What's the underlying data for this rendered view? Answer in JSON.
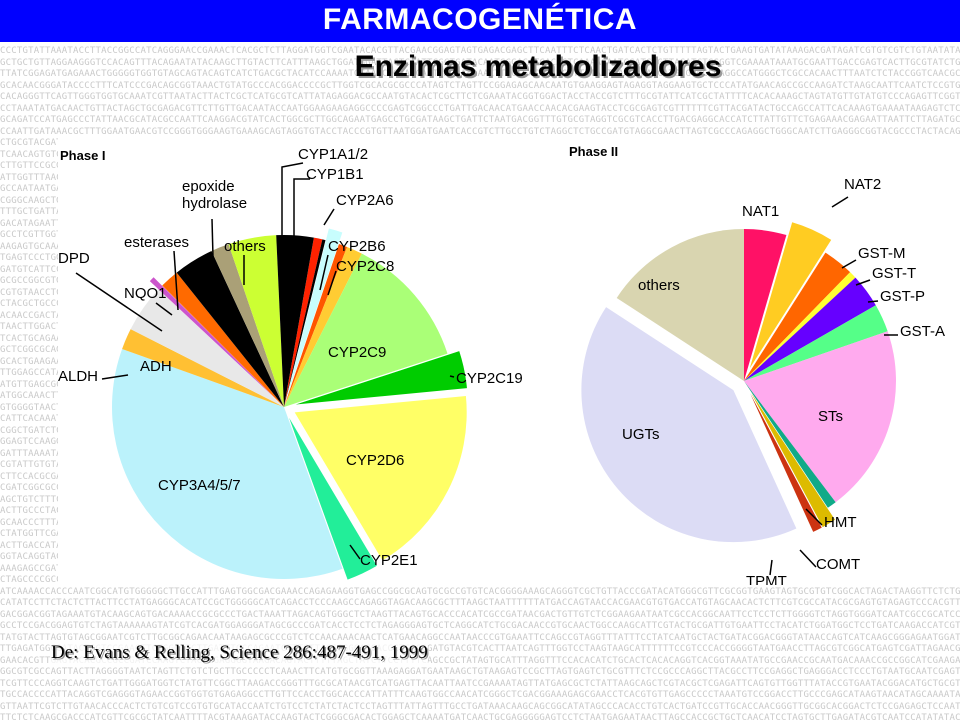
{
  "header": {
    "title": "FARMACOGENÉTICA"
  },
  "subtitle": "Enzimas metabolizadores",
  "source": "De: Evans & Relling, Science 286:487-491, 1999",
  "background_pattern": "dna-sequence-text",
  "chart_data": [
    {
      "type": "pie",
      "title": "Phase I",
      "start_angle_deg": 10,
      "slices": [
        {
          "label": "CYP1A1/2",
          "value": 0.8,
          "color": "#ff2200"
        },
        {
          "label": "CYP1B1",
          "value": 0.3,
          "color": "#000000"
        },
        {
          "label": "CYP2A6",
          "value": 1.3,
          "color": "#c8fdfd",
          "explode": true
        },
        {
          "label": "CYP2B6",
          "value": 0.8,
          "color": "#ff5500"
        },
        {
          "label": "CYP2C8",
          "value": 1.5,
          "color": "#ffcc33"
        },
        {
          "label": "CYP2C9",
          "value": 12.5,
          "color": "#aaff77"
        },
        {
          "label": "CYP2C19",
          "value": 3.5,
          "color": "#00cc00",
          "explode": true
        },
        {
          "label": "CYP2D6",
          "value": 18,
          "color": "#ffff66",
          "explode": true
        },
        {
          "label": "CYP2E1",
          "value": 3,
          "color": "#22ee99",
          "explode": true
        },
        {
          "label": "CYP3A4/5/7",
          "value": 36,
          "color": "#bbf2fb"
        },
        {
          "label": "ALDH",
          "value": 2,
          "color": "#ffc033"
        },
        {
          "label": "ADH",
          "value": 4.5,
          "color": "#e8e8e8"
        },
        {
          "label": "DPD",
          "value": 0.5,
          "color": "#cc55cc",
          "explode": true
        },
        {
          "label": "NQO1",
          "value": 1.8,
          "color": "#ff6a00"
        },
        {
          "label": "esterases",
          "value": 3.8,
          "color": "#000000"
        },
        {
          "label": "epoxide hydrolase",
          "value": 1.7,
          "color": "#aaa077"
        },
        {
          "label": "others",
          "value": 4.5,
          "color": "#ccff33"
        },
        {
          "label": "CYP1A1/2",
          "value": 3.5,
          "color": "#000000"
        }
      ]
    },
    {
      "type": "pie",
      "title": "Phase II",
      "start_angle_deg": 0,
      "slices": [
        {
          "label": "NAT1",
          "value": 4.5,
          "color": "#ff1166"
        },
        {
          "label": "NAT2",
          "value": 4.5,
          "color": "#ffcc22",
          "explode": true
        },
        {
          "label": "GST-M",
          "value": 3.3,
          "color": "#ff6600"
        },
        {
          "label": "GST-T",
          "value": 0.8,
          "color": "#ffff33"
        },
        {
          "label": "GST-P",
          "value": 3.6,
          "color": "#6600ff"
        },
        {
          "label": "GST-A",
          "value": 3,
          "color": "#55ff88"
        },
        {
          "label": "STs",
          "value": 20,
          "color": "#ffaaee"
        },
        {
          "label": "HMT",
          "value": 1,
          "color": "#11aa88"
        },
        {
          "label": "COMT",
          "value": 1.5,
          "color": "#ddbb00",
          "explode": true
        },
        {
          "label": "TPMT",
          "value": 1,
          "color": "#cc3311",
          "explode": true
        },
        {
          "label": "UGTs",
          "value": 41,
          "color": "#dcdcf5",
          "explode": true
        },
        {
          "label": "others",
          "value": 15.8,
          "color": "#d9d5b0"
        }
      ]
    }
  ]
}
